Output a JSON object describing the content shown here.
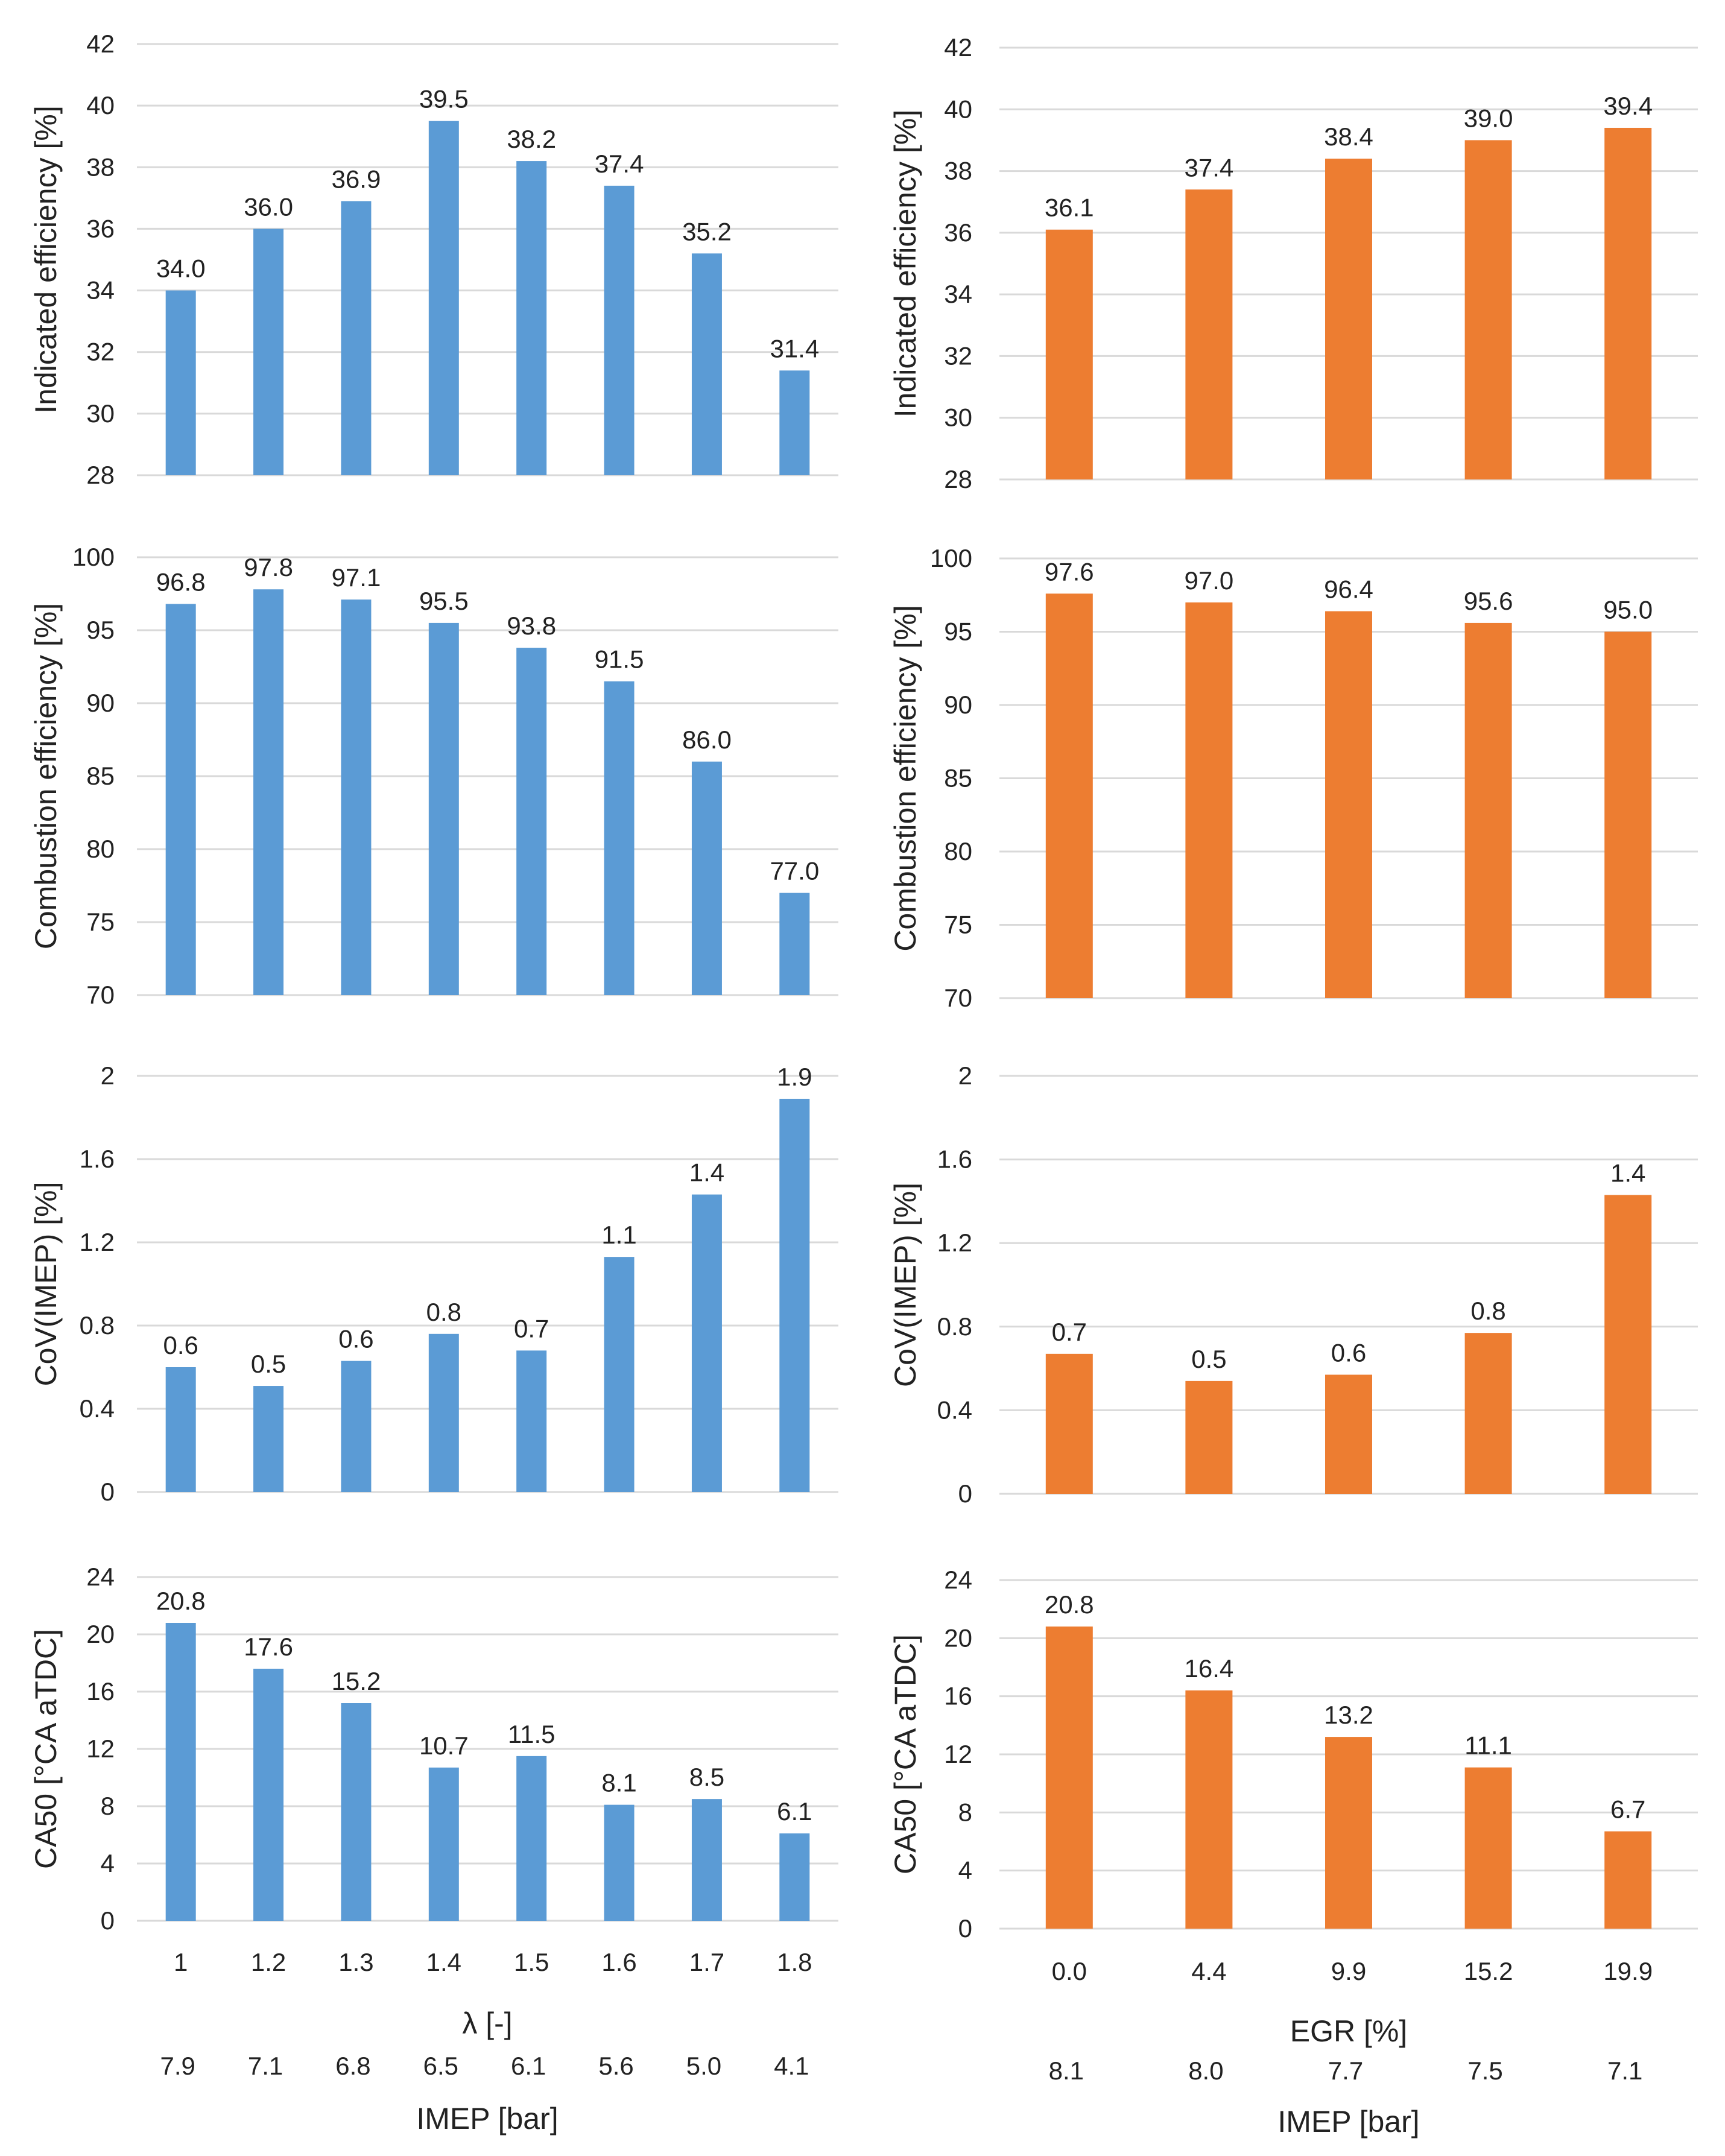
{
  "colors": {
    "left": "#5B9BD5",
    "right": "#ED7D31",
    "grid": "#D9D9D9"
  },
  "left_x_axis": {
    "tick_labels": [
      "1",
      "1.2",
      "1.3",
      "1.4",
      "1.5",
      "1.6",
      "1.7",
      "1.8"
    ],
    "title": "λ [-]",
    "secondary_labels": [
      "7.9",
      "7.1",
      "6.8",
      "6.5",
      "6.1",
      "5.6",
      "5.0",
      "4.1"
    ],
    "secondary_title": "IMEP [bar]"
  },
  "right_x_axis": {
    "tick_labels": [
      "0.0",
      "4.4",
      "9.9",
      "15.2",
      "19.9"
    ],
    "title": "EGR [%]",
    "secondary_labels": [
      "8.1",
      "8.0",
      "7.7",
      "7.5",
      "7.1"
    ],
    "secondary_title": "IMEP [bar]"
  },
  "chart_data": [
    {
      "type": "bar",
      "side": "left",
      "ylabel": "Indicated efficiency [%]",
      "ylim": [
        28,
        42
      ],
      "yticks": [
        "28",
        "30",
        "32",
        "34",
        "36",
        "38",
        "40",
        "42"
      ],
      "categories": [
        "1",
        "1.2",
        "1.3",
        "1.4",
        "1.5",
        "1.6",
        "1.7",
        "1.8"
      ],
      "values": [
        34.0,
        36.0,
        36.9,
        39.5,
        38.2,
        37.4,
        35.2,
        31.4
      ],
      "labels": [
        "34.0",
        "36.0",
        "36.9",
        "39.5",
        "38.2",
        "37.4",
        "35.2",
        "31.4"
      ],
      "grid": true
    },
    {
      "type": "bar",
      "side": "right",
      "ylabel": "Indicated efficiency [%]",
      "ylim": [
        28,
        42
      ],
      "yticks": [
        "28",
        "30",
        "32",
        "34",
        "36",
        "38",
        "40",
        "42"
      ],
      "categories": [
        "0.0",
        "4.4",
        "9.9",
        "15.2",
        "19.9"
      ],
      "values": [
        36.1,
        37.4,
        38.4,
        39.0,
        39.4
      ],
      "labels": [
        "36.1",
        "37.4",
        "38.4",
        "39.0",
        "39.4"
      ],
      "grid": true
    },
    {
      "type": "bar",
      "side": "left",
      "ylabel": "Combustion efficiency [%]",
      "ylim": [
        70,
        100
      ],
      "yticks": [
        "70",
        "75",
        "80",
        "85",
        "90",
        "95",
        "100"
      ],
      "categories": [
        "1",
        "1.2",
        "1.3",
        "1.4",
        "1.5",
        "1.6",
        "1.7",
        "1.8"
      ],
      "values": [
        96.8,
        97.8,
        97.1,
        95.5,
        93.8,
        91.5,
        86.0,
        77.0
      ],
      "labels": [
        "96.8",
        "97.8",
        "97.1",
        "95.5",
        "93.8",
        "91.5",
        "86.0",
        "77.0"
      ],
      "grid": true
    },
    {
      "type": "bar",
      "side": "right",
      "ylabel": "Combustion efficiency [%]",
      "ylim": [
        70,
        100
      ],
      "yticks": [
        "70",
        "75",
        "80",
        "85",
        "90",
        "95",
        "100"
      ],
      "categories": [
        "0.0",
        "4.4",
        "9.9",
        "15.2",
        "19.9"
      ],
      "values": [
        97.6,
        97.0,
        96.4,
        95.6,
        95.0
      ],
      "labels": [
        "97.6",
        "97.0",
        "96.4",
        "95.6",
        "95.0"
      ],
      "grid": true
    },
    {
      "type": "bar",
      "side": "left",
      "ylabel": "CoV(IMEP) [%]",
      "ylim": [
        0,
        2
      ],
      "yticks": [
        "0",
        "0.4",
        "0.8",
        "1.2",
        "1.6",
        "2"
      ],
      "categories": [
        "1",
        "1.2",
        "1.3",
        "1.4",
        "1.5",
        "1.6",
        "1.7",
        "1.8"
      ],
      "values": [
        0.6,
        0.51,
        0.63,
        0.76,
        0.68,
        1.13,
        1.43,
        1.89
      ],
      "labels": [
        "0.6",
        "0.5",
        "0.6",
        "0.8",
        "0.7",
        "1.1",
        "1.4",
        "1.9"
      ],
      "grid": true
    },
    {
      "type": "bar",
      "side": "right",
      "ylabel": "CoV(IMEP) [%]",
      "ylim": [
        0,
        2
      ],
      "yticks": [
        "0",
        "0.4",
        "0.8",
        "1.2",
        "1.6",
        "2"
      ],
      "categories": [
        "0.0",
        "4.4",
        "9.9",
        "15.2",
        "19.9"
      ],
      "values": [
        0.67,
        0.54,
        0.57,
        0.77,
        1.43
      ],
      "labels": [
        "0.7",
        "0.5",
        "0.6",
        "0.8",
        "1.4"
      ],
      "grid": true
    },
    {
      "type": "bar",
      "side": "left",
      "ylabel": "CA50 [°CA aTDC]",
      "ylim": [
        0,
        24
      ],
      "yticks": [
        "0",
        "4",
        "8",
        "12",
        "16",
        "20",
        "24"
      ],
      "categories": [
        "1",
        "1.2",
        "1.3",
        "1.4",
        "1.5",
        "1.6",
        "1.7",
        "1.8"
      ],
      "values": [
        20.8,
        17.6,
        15.2,
        10.7,
        11.5,
        8.1,
        8.5,
        6.1
      ],
      "labels": [
        "20.8",
        "17.6",
        "15.2",
        "10.7",
        "11.5",
        "8.1",
        "8.5",
        "6.1"
      ],
      "grid": true
    },
    {
      "type": "bar",
      "side": "right",
      "ylabel": "CA50 [°CA aTDC]",
      "ylim": [
        0,
        24
      ],
      "yticks": [
        "0",
        "4",
        "8",
        "12",
        "16",
        "20",
        "24"
      ],
      "categories": [
        "0.0",
        "4.4",
        "9.9",
        "15.2",
        "19.9"
      ],
      "values": [
        20.8,
        16.4,
        13.2,
        11.1,
        6.7
      ],
      "labels": [
        "20.8",
        "16.4",
        "13.2",
        "11.1",
        "6.7"
      ],
      "grid": true
    }
  ]
}
